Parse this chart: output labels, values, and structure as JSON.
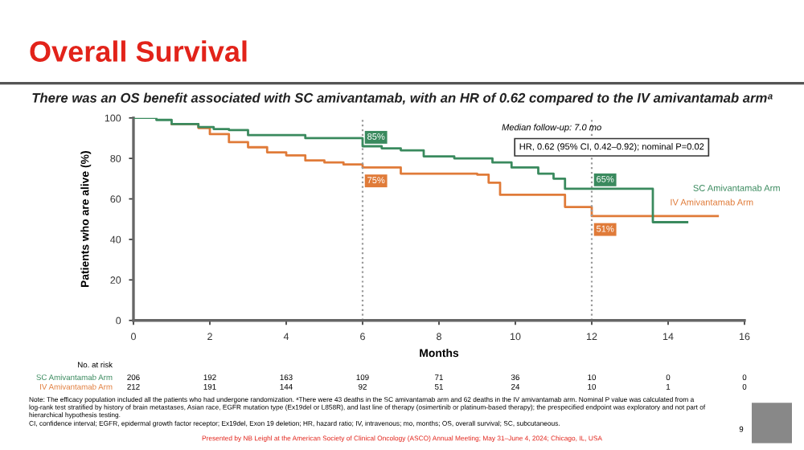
{
  "chart_data": {
    "type": "step",
    "title": "Overall Survival",
    "subtitle": "There was an OS benefit associated with SC amivantamab, with an HR of 0.62 compared to the IV amivantamab armᵃ",
    "xlabel": "Months",
    "ylabel": "Patients who are alive (%)",
    "xlim": [
      0,
      16
    ],
    "xticks": [
      0,
      2,
      4,
      6,
      8,
      10,
      12,
      14,
      16
    ],
    "ylim": [
      0,
      100
    ],
    "yticks": [
      0,
      20,
      40,
      60,
      80,
      100
    ],
    "grid": false,
    "legend": false,
    "series": [
      {
        "name": "SC Amivantamab Arm",
        "color": "#3a8a5e",
        "x": [
          0,
          0.6,
          1.0,
          1.7,
          2.1,
          2.5,
          3.0,
          4.5,
          6.0,
          6.5,
          7.0,
          7.6,
          8.4,
          9.4,
          9.9,
          10.6,
          11.0,
          11.3,
          13.6,
          14.5
        ],
        "values": [
          100,
          99,
          97,
          95.5,
          94.5,
          94,
          91.5,
          90,
          86,
          85,
          84,
          81,
          80,
          78,
          75.5,
          72.5,
          70,
          65,
          48.5,
          48.5
        ]
      },
      {
        "name": "IV Amivantamab Arm",
        "color": "#e07b39",
        "x": [
          1.0,
          1.7,
          2.0,
          2.5,
          3.0,
          3.5,
          4.0,
          4.5,
          5.0,
          5.5,
          6.0,
          7.0,
          9.0,
          9.3,
          9.6,
          11.3,
          12.0,
          15.3
        ],
        "values": [
          97,
          95,
          92,
          88,
          85.5,
          83,
          81.5,
          79,
          78,
          77,
          75.5,
          72.5,
          72,
          68,
          62,
          56,
          51.5,
          51.5
        ]
      }
    ],
    "ref_lines": [
      {
        "axis": "x",
        "value": 6,
        "color": "#9a9a9a",
        "line_style": "dotted"
      },
      {
        "axis": "x",
        "value": 12,
        "color": "#9a9a9a",
        "line_style": "dotted"
      }
    ],
    "annotations": [
      "85%",
      "75%",
      "65%",
      "51%",
      "Median follow-up: 7.0 mo",
      "HR, 0.62 (95% CI, 0.42–0.92); nominal P=0.02",
      "No. at risk",
      "SC Amivantamab Arm",
      "206 192 163 109 71 36 10 0 0",
      "IV Amivantamab Arm",
      "212 191 144 92 51 24 10 1 0",
      "Note: The efficacy population included all the patients who had undergone randomization. ᵃThere were 43 deaths in the SC amivantamab arm and 62 deaths in the IV amivantamab arm. Nominal P value was calculated from a log-rank test stratified by history of brain metastases, Asian race, EGFR mutation type (Ex19del or L858R), and last line of therapy (osimertinib or platinum-based therapy); the prespecified endpoint was exploratory and not part of hierarchical hypothesis testing.",
      "CI, confidence interval; EGFR, epidermal growth factor receptor; Ex19del, Exon 19 deletion; HR, hazard ratio; IV, intravenous; mo, months; OS, overall survival; SC, subcutaneous.",
      "Presented by NB Leighl at the American Society of Clinical Oncology (ASCO) Annual Meeting; May 31–June 4, 2024; Chicago, IL, USA",
      "9"
    ]
  }
}
